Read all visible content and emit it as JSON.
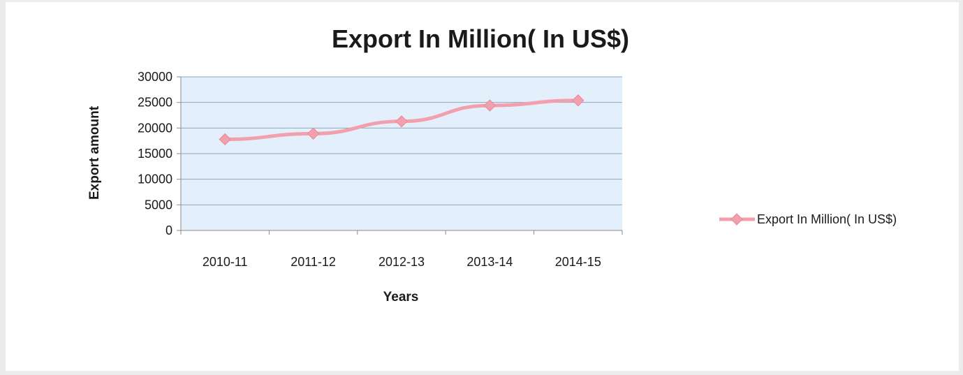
{
  "chart_data": {
    "type": "line",
    "title": "Export In Million( In US$)",
    "xlabel": "Years",
    "ylabel": "Export amount",
    "categories": [
      "2010-11",
      "2011-12",
      "2012-13",
      "2013-14",
      "2014-15"
    ],
    "series": [
      {
        "name": "Export In Million( In US$)",
        "values": [
          17800,
          18900,
          21300,
          24400,
          25400
        ],
        "color": "#f2a0ae"
      }
    ],
    "ylim": [
      0,
      30000
    ],
    "yticks": [
      "0",
      "5000",
      "10000",
      "15000",
      "20000",
      "25000",
      "30000"
    ],
    "grid": true,
    "legend_position": "right",
    "plot_background": "#e3f0fb",
    "grid_color": "#8ea6be"
  }
}
